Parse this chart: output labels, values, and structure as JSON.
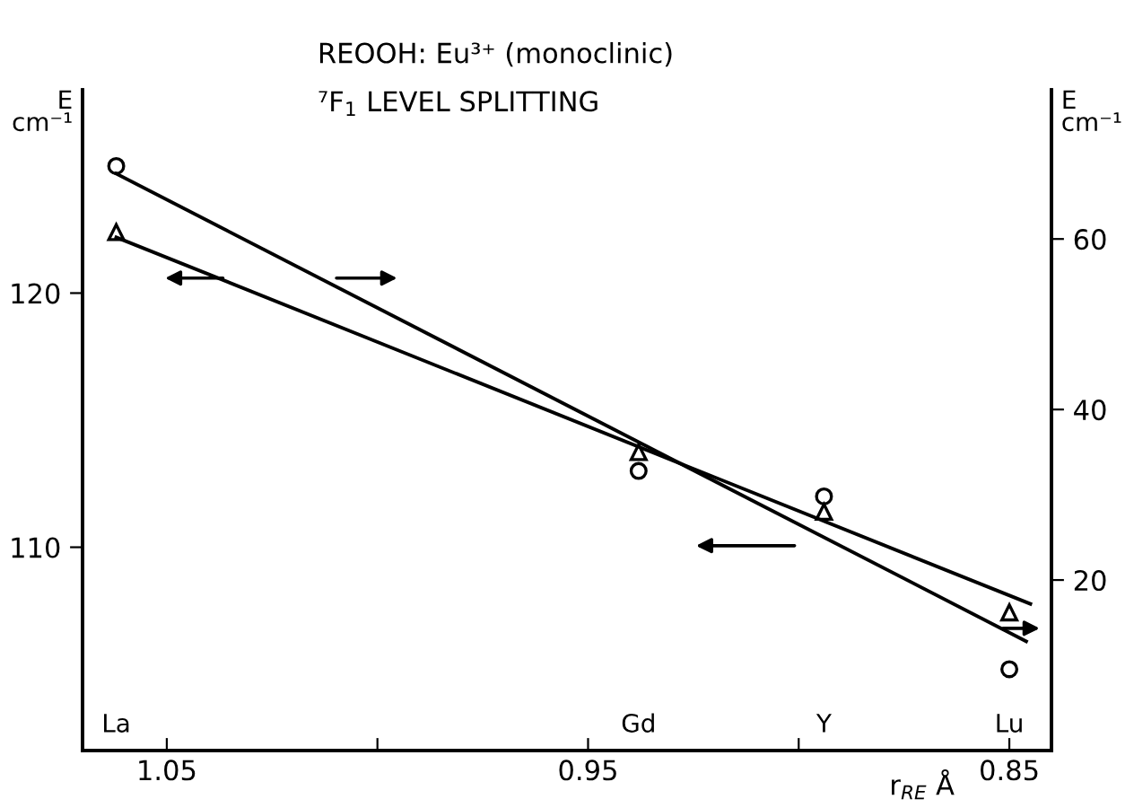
{
  "chart_data": {
    "type": "scatter",
    "title": "REOOH: Eu³⁺ (monoclinic)",
    "subtitle": "⁷F$_{1}$ LEVEL SPLITTING",
    "xlabel": "r$_{RE}$ Å",
    "ylabel": "E\ncm⁻¹",
    "y2label": "E\ncm⁻¹",
    "x": [
      1.062,
      0.938,
      0.894,
      0.85
    ],
    "series": [
      {
        "color": "#000000",
        "marker": "circle",
        "values": [
          125.0,
          113.0,
          112.0,
          105.2
        ]
      },
      {
        "color": "#000000",
        "marker": "triangle",
        "axis": "y2",
        "values": [
          60.8,
          35.0,
          28.0,
          16.2
        ]
      },
      {
        "type": "line",
        "color": "#000000",
        "x": [
          1.062,
          0.846
        ],
        "values": [
          124.7,
          106.3
        ]
      },
      {
        "type": "line",
        "color": "#000000",
        "axis": "y2",
        "x": [
          1.062,
          0.845
        ],
        "values": [
          60.2,
          17.2
        ]
      }
    ],
    "annotations": [
      "La",
      "Gd",
      "Y",
      "Lu"
    ],
    "xlim": [
      1.07,
      0.84
    ],
    "xticks": [
      1.05,
      {
        "value": 1.0,
        "label": null
      },
      0.95,
      {
        "value": 0.9,
        "label": null
      },
      0.85
    ],
    "ylim": [
      102,
      128
    ],
    "yticks": [
      110,
      120
    ],
    "y2lim": [
      0,
      77.5
    ],
    "y2ticks": [
      20,
      40,
      60
    ],
    "grid": false,
    "line_style": "solid"
  }
}
